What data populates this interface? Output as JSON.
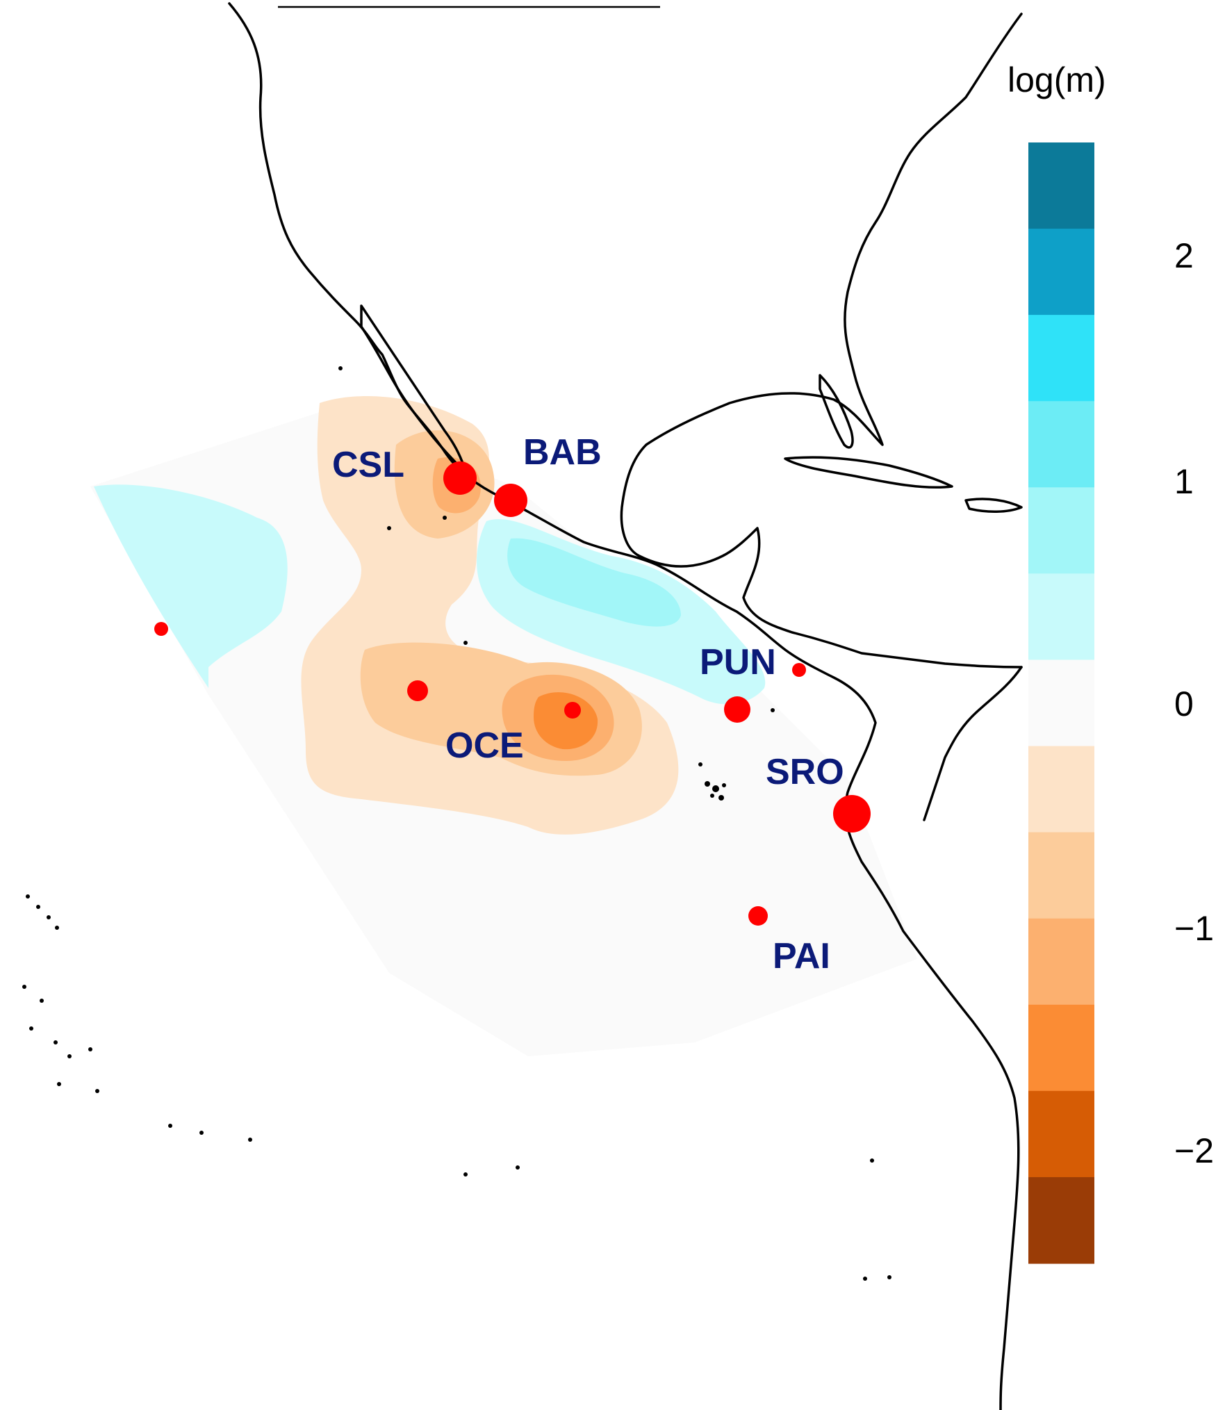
{
  "legend": {
    "title": "log(m)",
    "ticks": [
      "2",
      "1",
      "0",
      "−2",
      "−1"
    ],
    "bins": [
      {
        "color": "#0c7a99"
      },
      {
        "color": "#0ea0c8"
      },
      {
        "color": "#2fe2f8"
      },
      {
        "color": "#6cecf5"
      },
      {
        "color": "#a2f6f8"
      },
      {
        "color": "#c8fafb"
      },
      {
        "color": "#fafafa"
      },
      {
        "color": "#fde3c8"
      },
      {
        "color": "#fccc9b"
      },
      {
        "color": "#fcb06f"
      },
      {
        "color": "#fb8c34"
      },
      {
        "color": "#d65c05"
      },
      {
        "color": "#9a3c06"
      }
    ]
  },
  "sites": [
    {
      "code": "CSL",
      "color": "#ff0000",
      "size": "large"
    },
    {
      "code": "BAB",
      "color": "#ff0000",
      "size": "large"
    },
    {
      "code": "PUN",
      "color": "#ff0000",
      "size": "small"
    },
    {
      "code": "OCE",
      "color": "#ff0000",
      "size": "small"
    },
    {
      "code": "SRO",
      "color": "#ff0000",
      "size": "large"
    },
    {
      "code": "PAI",
      "color": "#ff0000",
      "size": "small"
    }
  ],
  "unlabeled_sites_count": 3,
  "colors": {
    "label": "#0b1a78",
    "site_marker": "#ff0000",
    "coastline": "#000000",
    "neutral_surface": "#fafafa"
  }
}
